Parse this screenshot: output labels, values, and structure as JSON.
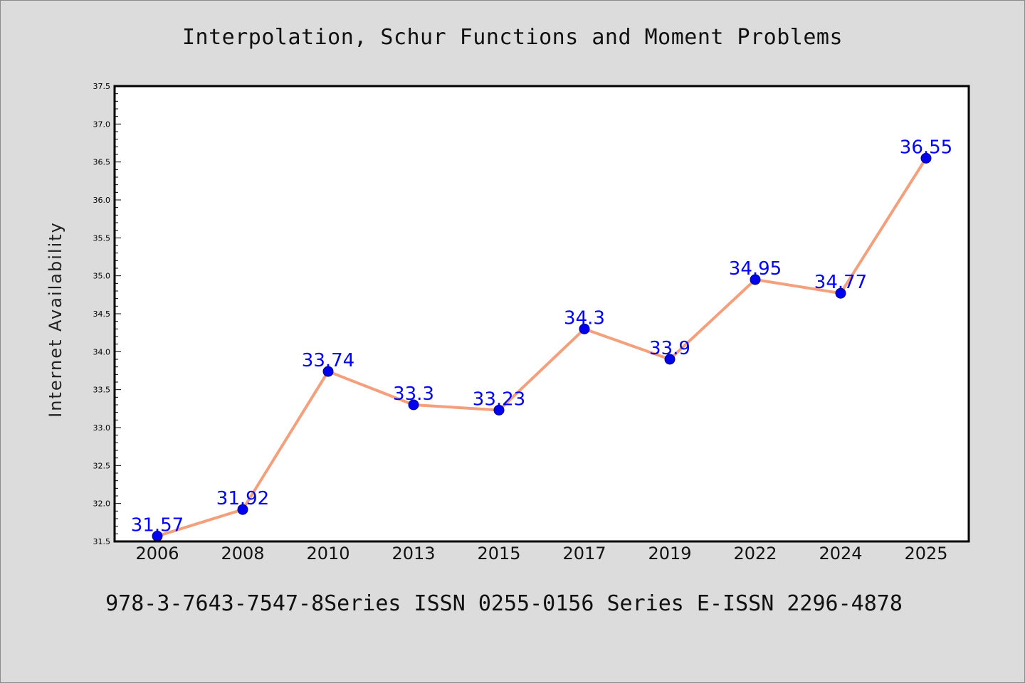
{
  "chart_data": {
    "type": "line",
    "title": "Interpolation, Schur Functions and Moment Problems",
    "xlabel": "",
    "ylabel": "Internet Availability",
    "categories": [
      "2006",
      "2008",
      "2010",
      "2013",
      "2015",
      "2017",
      "2019",
      "2022",
      "2024",
      "2025"
    ],
    "values": [
      31.57,
      31.92,
      33.74,
      33.3,
      33.23,
      34.3,
      33.9,
      34.95,
      34.77,
      36.55
    ],
    "data_labels": [
      "31.57",
      "31.92",
      "33.74",
      "33.3",
      "33.23",
      "34.3",
      "33.9",
      "34.95",
      "34.77",
      "36.55"
    ],
    "ylim": [
      31.5,
      37.5
    ],
    "yticks": [
      "31.5",
      "32.0",
      "32.5",
      "33.0",
      "33.5",
      "34.0",
      "34.5",
      "35.0",
      "35.5",
      "36.0",
      "36.5",
      "37.0",
      "37.5"
    ],
    "grid": false,
    "legend": "none",
    "colors": {
      "line": "#f4a07c",
      "marker": "#0000ee",
      "label": "#0000ff",
      "background": "#dcdcdc",
      "plot_area": "#ffffff"
    }
  },
  "footer": "978-3-7643-7547-8Series ISSN 0255-0156 Series E-ISSN 2296-4878"
}
